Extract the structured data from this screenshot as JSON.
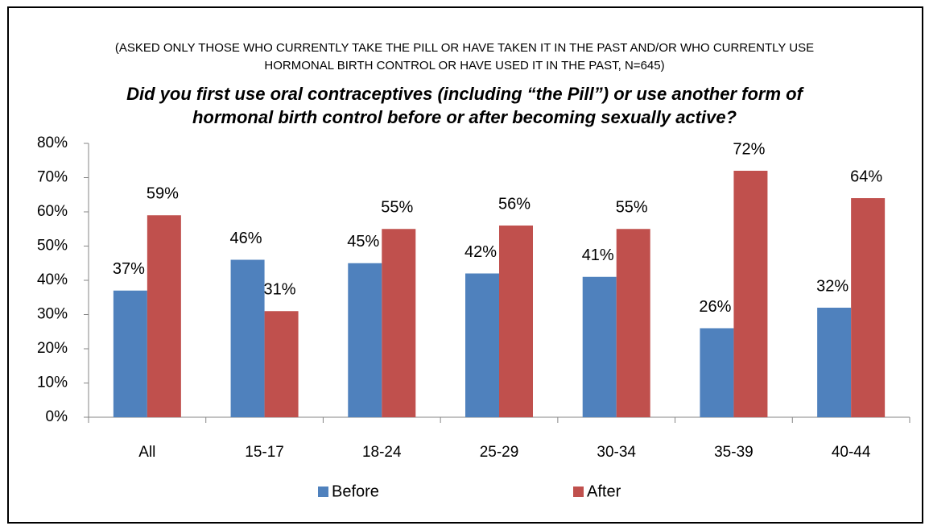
{
  "chart_data": {
    "type": "bar",
    "subtitle": [
      "(ASKED ONLY THOSE WHO CURRENTLY TAKE THE PILL OR HAVE TAKEN IT IN THE PAST AND/OR WHO CURRENTLY USE",
      "HORMONAL BIRTH CONTROL OR HAVE USED IT IN THE PAST, N=645)"
    ],
    "title": [
      "Did you first use oral contraceptives (including “the Pill”) or use another form of",
      "hormonal birth control before or after becoming sexually active?"
    ],
    "categories": [
      "All",
      "15-17",
      "18-24",
      "25-29",
      "30-34",
      "35-39",
      "40-44"
    ],
    "series": [
      {
        "name": "Before",
        "color": "#4f81bd",
        "values": [
          37,
          46,
          45,
          42,
          41,
          26,
          32
        ],
        "value_labels": [
          "37%",
          "46%",
          "45%",
          "42%",
          "41%",
          "26%",
          "32%"
        ]
      },
      {
        "name": "After",
        "color": "#c0504d",
        "values": [
          59,
          31,
          55,
          56,
          55,
          72,
          64
        ],
        "value_labels": [
          "59%",
          "31%",
          "55%",
          "56%",
          "55%",
          "72%",
          "64%"
        ]
      }
    ],
    "ylim": [
      0,
      80
    ],
    "yticks": [
      {
        "value": 0,
        "label": "0%"
      },
      {
        "value": 10,
        "label": "10%"
      },
      {
        "value": 20,
        "label": "20%"
      },
      {
        "value": 30,
        "label": "30%"
      },
      {
        "value": 40,
        "label": "40%"
      },
      {
        "value": 50,
        "label": "50%"
      },
      {
        "value": 60,
        "label": "60%"
      },
      {
        "value": 70,
        "label": "70%"
      },
      {
        "value": 80,
        "label": "80%"
      }
    ],
    "grid": false,
    "legend": "bottom"
  }
}
